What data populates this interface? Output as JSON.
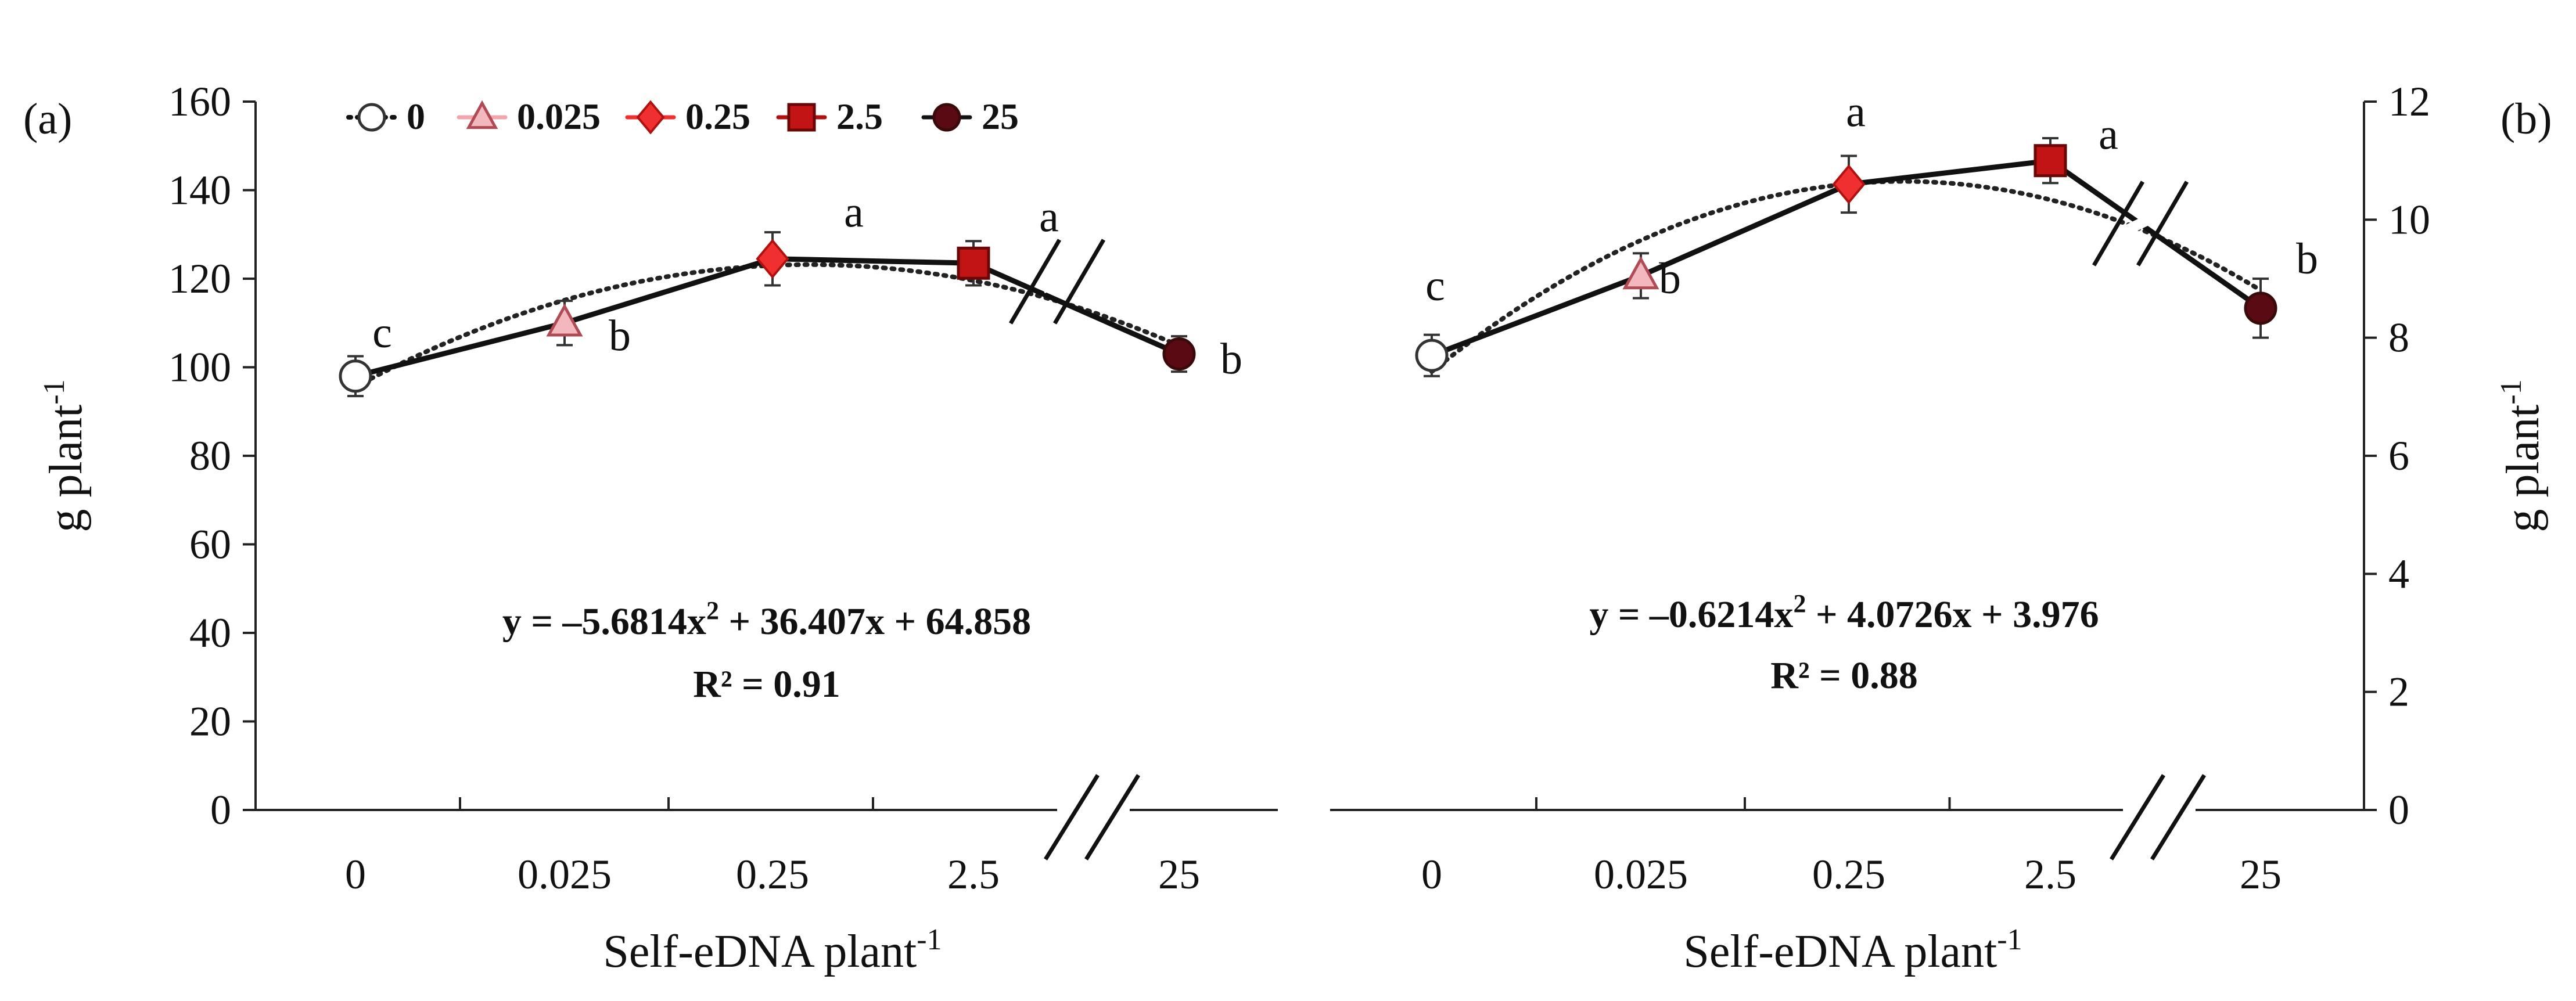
{
  "chart_data": [
    {
      "type": "line",
      "panel_label": "(a)",
      "categories": [
        "0",
        "0.025",
        "0.25",
        "2.5",
        "25"
      ],
      "series": [
        {
          "values": [
            98,
            110,
            124.5,
            123.5,
            103
          ]
        }
      ],
      "points": [
        {
          "category": "0",
          "value": 98,
          "error": 4.5,
          "marker": "circle",
          "color": "#ffffff",
          "letter": "c"
        },
        {
          "category": "0.025",
          "value": 110,
          "error": 5,
          "marker": "triangle",
          "color": "#f2b8bd",
          "letter": "b"
        },
        {
          "category": "0.25",
          "value": 124.5,
          "error": 6,
          "marker": "diamond",
          "color": "#f03030",
          "letter": "a"
        },
        {
          "category": "2.5",
          "value": 123.5,
          "error": 5,
          "marker": "square",
          "color": "#c21414",
          "letter": "a"
        },
        {
          "category": "25",
          "value": 103,
          "error": 4,
          "marker": "circle",
          "color": "#5a0a12",
          "letter": "b"
        }
      ],
      "trend": {
        "coefficients": [
          -5.6814,
          36.407,
          64.858
        ],
        "style": "dotted"
      },
      "equation": {
        "prefix": "y = –5.6814x",
        "sup": "2",
        "suffix": " + 36.407x + 64.858",
        "r2": "R² = 0.91"
      },
      "xlabel": {
        "main": "Self-eDNA plant",
        "sup": "-1"
      },
      "ylabel": {
        "main": "g plant",
        "sup": "-1"
      },
      "ylim": [
        0,
        160
      ],
      "yticks": [
        0,
        20,
        40,
        60,
        80,
        100,
        120,
        140,
        160
      ],
      "y_axis_side": "left",
      "axis_break_before_last": true,
      "legend": {
        "position": "top",
        "items": [
          {
            "label": "0",
            "marker": "circle",
            "color": "#ffffff",
            "line": "dotted"
          },
          {
            "label": "0.025",
            "marker": "triangle",
            "color": "#f2b8bd",
            "line": "solid-light"
          },
          {
            "label": "0.25",
            "marker": "diamond",
            "color": "#f03030",
            "line": "solid-red"
          },
          {
            "label": "2.5",
            "marker": "square",
            "color": "#c21414",
            "line": "solid-dark"
          },
          {
            "label": "25",
            "marker": "circle",
            "color": "#5a0a12",
            "line": "solid-black"
          }
        ]
      }
    },
    {
      "type": "line",
      "panel_label": "(b)",
      "categories": [
        "0",
        "0.025",
        "0.25",
        "2.5",
        "25"
      ],
      "series": [
        {
          "values": [
            7.7,
            9.05,
            10.6,
            11.0,
            8.5
          ]
        }
      ],
      "points": [
        {
          "category": "0",
          "value": 7.7,
          "error": 0.35,
          "marker": "circle",
          "color": "#ffffff",
          "letter": "c"
        },
        {
          "category": "0.025",
          "value": 9.05,
          "error": 0.38,
          "marker": "triangle",
          "color": "#f2b8bd",
          "letter": "b"
        },
        {
          "category": "0.25",
          "value": 10.6,
          "error": 0.48,
          "marker": "diamond",
          "color": "#f03030",
          "letter": "a"
        },
        {
          "category": "2.5",
          "value": 11.0,
          "error": 0.38,
          "marker": "square",
          "color": "#c21414",
          "letter": "a"
        },
        {
          "category": "25",
          "value": 8.5,
          "error": 0.5,
          "marker": "circle",
          "color": "#5a0a12",
          "letter": "b"
        }
      ],
      "trend": {
        "coefficients": [
          -0.6214,
          4.0726,
          3.976
        ],
        "style": "dotted"
      },
      "equation": {
        "prefix": "y = –0.6214x",
        "sup": "2",
        "suffix": " + 4.0726x + 3.976",
        "r2": "R² = 0.88"
      },
      "xlabel": {
        "main": "Self-eDNA plant",
        "sup": "-1"
      },
      "ylabel": {
        "main": "g plant",
        "sup": "-1"
      },
      "ylim": [
        0,
        12
      ],
      "yticks": [
        0,
        2,
        4,
        6,
        8,
        10,
        12
      ],
      "y_axis_side": "right",
      "axis_break_before_last": true
    }
  ]
}
